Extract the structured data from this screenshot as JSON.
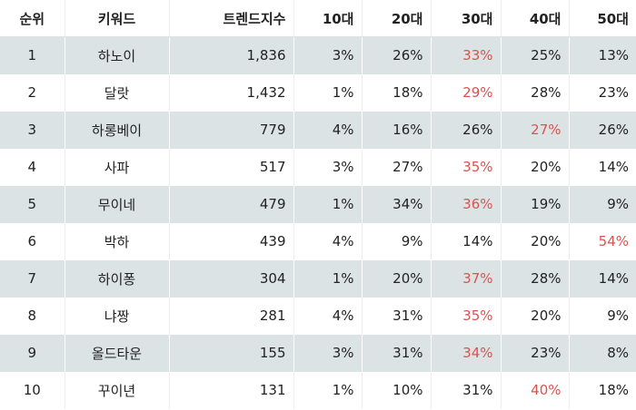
{
  "table": {
    "headers": [
      "순위",
      "키워드",
      "트렌드지수",
      "10대",
      "20대",
      "30대",
      "40대",
      "50대"
    ],
    "highlight_color": "#d9534f",
    "rows": [
      {
        "rank": "1",
        "keyword": "하노이",
        "index": "1,836",
        "a10": "3%",
        "a20": "26%",
        "a30": "33%",
        "a40": "25%",
        "a50": "13%",
        "max": "a30"
      },
      {
        "rank": "2",
        "keyword": "달랏",
        "index": "1,432",
        "a10": "1%",
        "a20": "18%",
        "a30": "29%",
        "a40": "28%",
        "a50": "23%",
        "max": "a30"
      },
      {
        "rank": "3",
        "keyword": "하롱베이",
        "index": "779",
        "a10": "4%",
        "a20": "16%",
        "a30": "26%",
        "a40": "27%",
        "a50": "26%",
        "max": "a40"
      },
      {
        "rank": "4",
        "keyword": "사파",
        "index": "517",
        "a10": "3%",
        "a20": "27%",
        "a30": "35%",
        "a40": "20%",
        "a50": "14%",
        "max": "a30"
      },
      {
        "rank": "5",
        "keyword": "무이네",
        "index": "479",
        "a10": "1%",
        "a20": "34%",
        "a30": "36%",
        "a40": "19%",
        "a50": "9%",
        "max": "a30"
      },
      {
        "rank": "6",
        "keyword": "박하",
        "index": "439",
        "a10": "4%",
        "a20": "9%",
        "a30": "14%",
        "a40": "20%",
        "a50": "54%",
        "max": "a50"
      },
      {
        "rank": "7",
        "keyword": "하이퐁",
        "index": "304",
        "a10": "1%",
        "a20": "20%",
        "a30": "37%",
        "a40": "28%",
        "a50": "14%",
        "max": "a30"
      },
      {
        "rank": "8",
        "keyword": "냐짱",
        "index": "281",
        "a10": "4%",
        "a20": "31%",
        "a30": "35%",
        "a40": "20%",
        "a50": "9%",
        "max": "a30"
      },
      {
        "rank": "9",
        "keyword": "올드타운",
        "index": "155",
        "a10": "3%",
        "a20": "31%",
        "a30": "34%",
        "a40": "23%",
        "a50": "8%",
        "max": "a30"
      },
      {
        "rank": "10",
        "keyword": "꾸이년",
        "index": "131",
        "a10": "1%",
        "a20": "10%",
        "a30": "31%",
        "a40": "40%",
        "a50": "18%",
        "max": "a40"
      }
    ]
  }
}
